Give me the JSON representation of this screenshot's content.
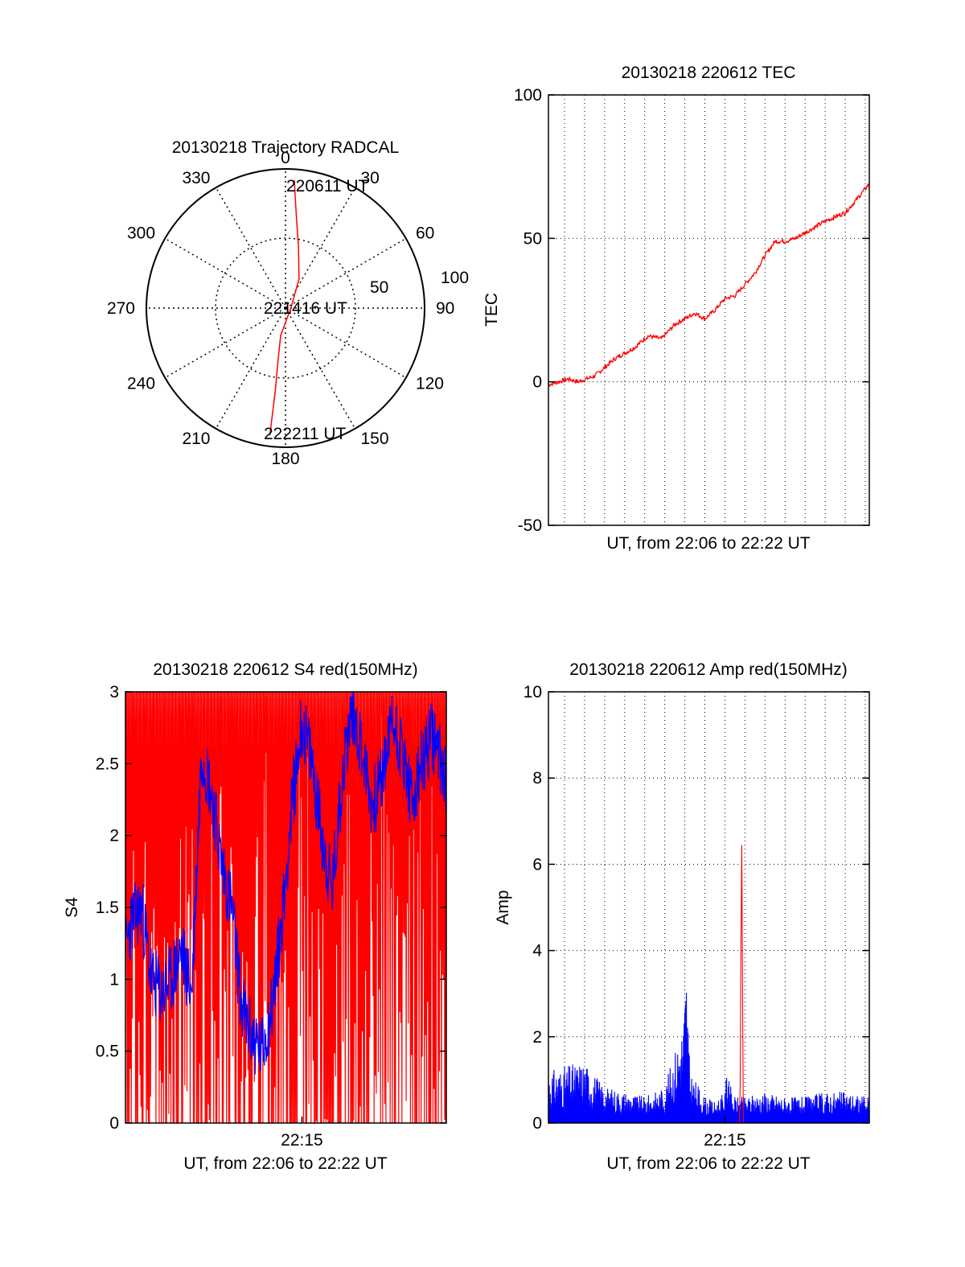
{
  "colors": {
    "red": "#ff0000",
    "blue": "#0000ff",
    "axis": "#000000",
    "grid": "#000000"
  },
  "chart_data": [
    {
      "id": "trajectory",
      "type": "polar",
      "title": "20130218 Trajectory RADCAL",
      "grid": true,
      "azimuth_labels": [
        "0",
        "30",
        "60",
        "90",
        "120",
        "150",
        "180",
        "210",
        "240",
        "270",
        "300",
        "330"
      ],
      "radius_range": [
        0,
        100
      ],
      "radius_rings": [
        50,
        100
      ],
      "radius_labels": [
        "50",
        "100"
      ],
      "series": [
        {
          "color": "red",
          "points": [
            {
              "az": 4,
              "r": 92
            },
            {
              "az": 5,
              "r": 80
            },
            {
              "az": 7,
              "r": 65
            },
            {
              "az": 12,
              "r": 45
            },
            {
              "az": 25,
              "r": 23
            },
            {
              "az": 85,
              "r": 4
            },
            {
              "az": 190,
              "r": 20
            },
            {
              "az": 188,
              "r": 40
            },
            {
              "az": 187,
              "r": 60
            },
            {
              "az": 187,
              "r": 80
            },
            {
              "az": 187,
              "r": 92
            }
          ]
        }
      ],
      "annotations": [
        {
          "text": "220611 UT",
          "az": 4,
          "r": 92
        },
        {
          "text": "221416 UT",
          "az": 85,
          "r": 4
        },
        {
          "text": "222211 UT",
          "az": 187,
          "r": 92
        }
      ]
    },
    {
      "id": "tec",
      "type": "line",
      "title": "20130218 220612 TEC",
      "xlabel": "UT, from 22:06 to 22:22 UT",
      "ylabel": "TEC",
      "xlim": [
        "22:06:12",
        "22:22:12"
      ],
      "ylim": [
        -50,
        100
      ],
      "yticks": [
        "-50",
        "0",
        "50",
        "100"
      ],
      "grid": true,
      "series": [
        {
          "color": "red",
          "x": [
            "22:06:12",
            "22:07:12",
            "22:07:40",
            "22:08:30",
            "22:09:30",
            "22:10:30",
            "22:11:10",
            "22:11:50",
            "22:12:30",
            "22:13:30",
            "22:14:00",
            "22:14:30",
            "22:15:00",
            "22:15:30",
            "22:16:00",
            "22:16:30",
            "22:17:00",
            "22:17:30",
            "22:18:00",
            "22:18:30",
            "22:19:00",
            "22:20:00",
            "22:21:00",
            "22:21:30",
            "22:22:12"
          ],
          "y": [
            -1,
            1,
            0,
            2,
            8,
            12,
            16,
            15,
            20,
            24,
            22,
            25,
            29,
            30,
            34,
            38,
            44,
            49,
            49,
            50,
            52,
            56,
            59,
            63,
            69
          ]
        }
      ]
    },
    {
      "id": "s4",
      "type": "line",
      "title": "20130218 220612 S4 red(150MHz)",
      "xlabel": "UT, from 22:06 to 22:22 UT",
      "ylabel": "S4",
      "xlim": [
        "22:06:12",
        "22:22:12"
      ],
      "ylim": [
        0,
        3
      ],
      "yticks": [
        "0",
        "0.5",
        "1",
        "1.5",
        "2",
        "2.5",
        "3"
      ],
      "xticks": [
        "22:15"
      ],
      "grid": false,
      "series": [
        {
          "color": "red",
          "x": [
            "22:06:12",
            "22:07:00",
            "22:08:00",
            "22:09:00",
            "22:10:00",
            "22:11:00",
            "22:12:00",
            "22:13:00",
            "22:14:00",
            "22:15:00",
            "22:16:00",
            "22:17:00",
            "22:18:00",
            "22:19:00",
            "22:20:00",
            "22:21:00",
            "22:22:12"
          ],
          "y": [
            1.5,
            3,
            1.2,
            3,
            1.5,
            3,
            1.5,
            3,
            1.5,
            3,
            1.5,
            3,
            1.5,
            3,
            1.5,
            3,
            1.5
          ]
        },
        {
          "color": "blue",
          "x": [
            "22:06:12",
            "22:06:30",
            "22:07:00",
            "22:07:30",
            "22:08:00",
            "22:08:30",
            "22:09:00",
            "22:09:30",
            "22:10:00",
            "22:10:30",
            "22:11:00",
            "22:11:30",
            "22:12:00",
            "22:12:30",
            "22:13:00",
            "22:13:30",
            "22:14:00",
            "22:14:30",
            "22:15:00",
            "22:15:30",
            "22:16:00",
            "22:16:30",
            "22:17:00",
            "22:17:30",
            "22:18:00",
            "22:18:30",
            "22:19:00",
            "22:19:30",
            "22:20:00",
            "22:20:30",
            "22:21:00",
            "22:21:30",
            "22:22:12"
          ],
          "y": [
            1.2,
            1.4,
            1.5,
            1.0,
            0.9,
            1.0,
            1.2,
            0.9,
            2.6,
            2.3,
            1.8,
            1.5,
            0.8,
            0.6,
            0.5,
            0.8,
            1.4,
            2.2,
            2.8,
            2.5,
            2.0,
            1.6,
            2.4,
            2.9,
            2.6,
            2.2,
            2.4,
            2.8,
            2.6,
            2.2,
            2.5,
            2.7,
            2.4
          ]
        }
      ]
    },
    {
      "id": "amp",
      "type": "line",
      "title": "20130218 220612 Amp red(150MHz)",
      "xlabel": "UT, from 22:06 to 22:22 UT",
      "ylabel": "Amp",
      "xlim": [
        "22:06:12",
        "22:22:12"
      ],
      "ylim": [
        0,
        10
      ],
      "yticks": [
        "0",
        "2",
        "4",
        "6",
        "8",
        "10"
      ],
      "xticks": [
        "22:15"
      ],
      "grid": true,
      "series": [
        {
          "color": "blue",
          "x": [
            "22:06:12",
            "22:07:00",
            "22:08:00",
            "22:09:00",
            "22:10:00",
            "22:11:00",
            "22:12:00",
            "22:12:55",
            "22:13:05",
            "22:13:15",
            "22:14:00",
            "22:14:30",
            "22:15:00",
            "22:15:10",
            "22:15:20",
            "22:16:00",
            "22:17:00",
            "22:18:00",
            "22:19:00",
            "22:20:00",
            "22:21:00",
            "22:22:12"
          ],
          "y": [
            1.0,
            1.1,
            1.2,
            0.7,
            0.6,
            0.5,
            0.7,
            2.0,
            3.2,
            1.0,
            0.5,
            0.4,
            0.6,
            1.4,
            0.5,
            0.5,
            0.6,
            0.5,
            0.5,
            0.6,
            0.6,
            0.5
          ]
        },
        {
          "color": "red",
          "x": [
            "22:06:12",
            "22:15:45",
            "22:15:50",
            "22:15:55",
            "22:22:12"
          ],
          "y": [
            0,
            0,
            7,
            0,
            0
          ]
        }
      ]
    }
  ]
}
